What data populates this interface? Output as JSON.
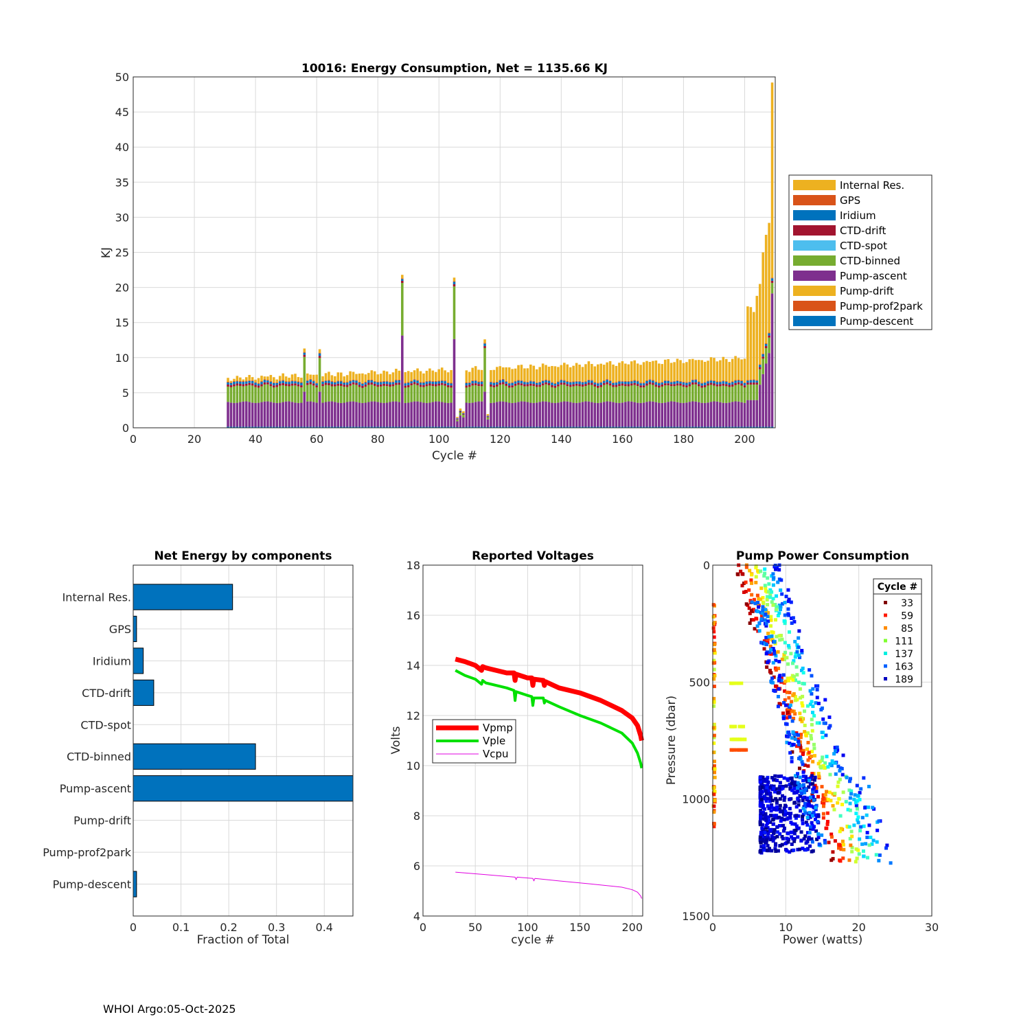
{
  "footer": "WHOI Argo:05-Oct-2025",
  "colors": {
    "internal_res": "#EDB120",
    "gps": "#D95319",
    "iridium": "#0072BD",
    "ctd_drift": "#A2142F",
    "ctd_spot": "#4DBEEE",
    "ctd_binned": "#77AC30",
    "pump_ascent": "#7E2F8E",
    "pump_drift": "#EDB120",
    "pump_prof2park": "#D95319",
    "pump_descent": "#0072BD",
    "vpmp": "#ff0000",
    "vple": "#00e000",
    "vcpu": "#e000e0"
  },
  "chart_data": [
    {
      "type": "bar",
      "stacked": true,
      "title": "10016: Energy Consumption,  Net = 1135.66 KJ",
      "xlabel": "Cycle #",
      "ylabel": "KJ",
      "xlim": [
        0,
        210
      ],
      "ylim": [
        0,
        50
      ],
      "xticks": [
        0,
        20,
        40,
        60,
        80,
        100,
        120,
        140,
        160,
        180,
        200
      ],
      "yticks": [
        0,
        5,
        10,
        15,
        20,
        25,
        30,
        35,
        40,
        45,
        50
      ],
      "cycle_range": [
        31,
        209
      ],
      "legend_position": "right-outside",
      "legend": [
        "Internal Res.",
        "GPS",
        "Iridium",
        "CTD-drift",
        "CTD-spot",
        "CTD-binned",
        "Pump-ascent",
        "Pump-drift",
        "Pump-prof2park",
        "Pump-descent"
      ],
      "typical_components": {
        "pump_descent": 0.15,
        "pump_ascent": 3.5,
        "ctd_binned": 2.3,
        "ctd_drift": 0.3,
        "iridium": 0.25,
        "gps": 0.1
      },
      "internal_res_trend": {
        "start_cycle": 31,
        "start_value": 0.4,
        "end_cycle": 198,
        "end_value": 3.2
      },
      "total_spikes": [
        {
          "cycle": 56,
          "total": 11.3
        },
        {
          "cycle": 61,
          "total": 11.2
        },
        {
          "cycle": 88,
          "total": 21.8
        },
        {
          "cycle": 105,
          "total": 21.4
        },
        {
          "cycle": 115,
          "total": 12.6
        },
        {
          "cycle": 201,
          "total": 17.3
        },
        {
          "cycle": 202,
          "total": 17.2
        },
        {
          "cycle": 203,
          "total": 16.5
        },
        {
          "cycle": 204,
          "total": 18.8
        },
        {
          "cycle": 205,
          "total": 20.5
        },
        {
          "cycle": 206,
          "total": 25.0
        },
        {
          "cycle": 207,
          "total": 27.5
        },
        {
          "cycle": 208,
          "total": 29.2
        },
        {
          "cycle": 209,
          "total": 49.2
        }
      ],
      "low_cycles": [
        {
          "cycle": 106,
          "total": 1.5
        },
        {
          "cycle": 107,
          "total": 3.0
        },
        {
          "cycle": 108,
          "total": 2.5
        },
        {
          "cycle": 116,
          "total": 2.0
        }
      ]
    },
    {
      "type": "bar",
      "orientation": "horizontal",
      "title": "Net Energy by components",
      "xlabel": "Fraction of Total",
      "xlim": [
        0,
        0.46
      ],
      "xticks": [
        0,
        0.1,
        0.2,
        0.3,
        0.4
      ],
      "xticklabels": [
        "0",
        "0.1",
        "0.2",
        "0.3",
        "0.4"
      ],
      "categories": [
        "Internal Res.",
        "GPS",
        "Iridium",
        "CTD-drift",
        "CTD-spot",
        "CTD-binned",
        "Pump-ascent",
        "Pump-drift",
        "Pump-prof2park",
        "Pump-descent"
      ],
      "values": [
        0.208,
        0.007,
        0.021,
        0.043,
        0.0,
        0.256,
        0.465,
        0.0,
        0.0,
        0.007
      ]
    },
    {
      "type": "line",
      "title": "Reported Voltages",
      "xlabel": "cycle #",
      "ylabel": "Volts",
      "xlim": [
        0,
        210
      ],
      "ylim": [
        4,
        18
      ],
      "xticks": [
        0,
        50,
        100,
        150,
        200
      ],
      "yticks": [
        4,
        6,
        8,
        10,
        12,
        14,
        16,
        18
      ],
      "legend_position": "middle-left",
      "series": [
        {
          "name": "Vpmp",
          "points": [
            [
              31,
              14.25
            ],
            [
              40,
              14.15
            ],
            [
              50,
              14.0
            ],
            [
              56,
              13.8
            ],
            [
              57,
              13.95
            ],
            [
              60,
              13.9
            ],
            [
              80,
              13.7
            ],
            [
              87,
              13.7
            ],
            [
              88,
              13.4
            ],
            [
              89,
              13.65
            ],
            [
              100,
              13.5
            ],
            [
              104,
              13.5
            ],
            [
              105,
              13.2
            ],
            [
              106,
              13.45
            ],
            [
              115,
              13.4
            ],
            [
              116,
              13.2
            ],
            [
              117,
              13.35
            ],
            [
              130,
              13.1
            ],
            [
              150,
              12.9
            ],
            [
              170,
              12.6
            ],
            [
              190,
              12.2
            ],
            [
              200,
              11.9
            ],
            [
              205,
              11.6
            ],
            [
              208,
              11.2
            ],
            [
              209,
              11.0
            ]
          ]
        },
        {
          "name": "Vple",
          "points": [
            [
              31,
              13.8
            ],
            [
              40,
              13.6
            ],
            [
              50,
              13.45
            ],
            [
              56,
              13.25
            ],
            [
              57,
              13.4
            ],
            [
              60,
              13.3
            ],
            [
              80,
              13.1
            ],
            [
              87,
              13.0
            ],
            [
              88,
              12.6
            ],
            [
              89,
              12.95
            ],
            [
              100,
              12.8
            ],
            [
              104,
              12.75
            ],
            [
              105,
              12.4
            ],
            [
              106,
              12.7
            ],
            [
              115,
              12.7
            ],
            [
              116,
              12.5
            ],
            [
              117,
              12.6
            ],
            [
              130,
              12.35
            ],
            [
              150,
              12.0
            ],
            [
              170,
              11.7
            ],
            [
              190,
              11.3
            ],
            [
              200,
              10.9
            ],
            [
              205,
              10.5
            ],
            [
              208,
              10.1
            ],
            [
              209,
              9.9
            ]
          ]
        },
        {
          "name": "Vcpu",
          "points": [
            [
              31,
              5.75
            ],
            [
              60,
              5.65
            ],
            [
              88,
              5.55
            ],
            [
              89,
              5.45
            ],
            [
              90,
              5.55
            ],
            [
              105,
              5.5
            ],
            [
              106,
              5.4
            ],
            [
              107,
              5.5
            ],
            [
              130,
              5.4
            ],
            [
              160,
              5.28
            ],
            [
              190,
              5.15
            ],
            [
              200,
              5.05
            ],
            [
              205,
              4.95
            ],
            [
              208,
              4.8
            ],
            [
              209,
              4.7
            ]
          ]
        }
      ]
    },
    {
      "type": "scatter",
      "title": "Pump Power Consumption",
      "xlabel": "Power (watts)",
      "ylabel": "Pressure (dbar)",
      "xlim": [
        0,
        30
      ],
      "ylim": [
        0,
        1500
      ],
      "y_reversed": true,
      "xticks": [
        0,
        10,
        20,
        30
      ],
      "yticks": [
        0,
        500,
        1000,
        1500
      ],
      "legend_title": "Cycle #",
      "legend_position": "top-right",
      "legend": [
        {
          "cycle": "33",
          "color": "#800000"
        },
        {
          "cycle": "59",
          "color": "#ff1a00"
        },
        {
          "cycle": "85",
          "color": "#ff8c00"
        },
        {
          "cycle": "111",
          "color": "#80ff30"
        },
        {
          "cycle": "137",
          "color": "#00f0e0"
        },
        {
          "cycle": "163",
          "color": "#0060ff"
        },
        {
          "cycle": "189",
          "color": "#0000c0"
        }
      ]
    }
  ]
}
